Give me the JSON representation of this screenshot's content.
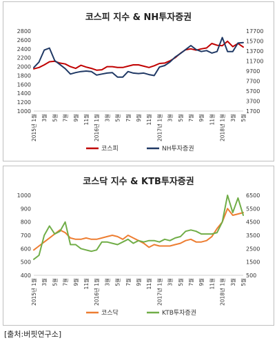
{
  "chart_data": [
    {
      "type": "line",
      "title": "코스피 지수 & NH투자증권",
      "x": [
        "2015-01",
        "2015-02",
        "2015-03",
        "2015-04",
        "2015-05",
        "2015-06",
        "2015-07",
        "2015-08",
        "2015-09",
        "2015-10",
        "2015-11",
        "2015-12",
        "2016-01",
        "2016-02",
        "2016-03",
        "2016-04",
        "2016-05",
        "2016-06",
        "2016-07",
        "2016-08",
        "2016-09",
        "2016-10",
        "2016-11",
        "2016-12",
        "2017-01",
        "2017-02",
        "2017-03",
        "2017-04",
        "2017-05",
        "2017-06",
        "2017-07",
        "2017-08",
        "2017-09",
        "2017-10",
        "2017-11",
        "2017-12",
        "2018-01",
        "2018-02",
        "2018-03",
        "2018-04",
        "2018-05"
      ],
      "x_tick_labels": [
        "2015년 1월",
        "3월",
        "5월",
        "7월",
        "9월",
        "11월",
        "2016년 1월",
        "3월",
        "5월",
        "7월",
        "9월",
        "11월",
        "2017년 1월",
        "3월",
        "5월",
        "7월",
        "9월",
        "11월",
        "2018년 1월",
        "3월",
        "5월"
      ],
      "left_axis": {
        "min": 1000,
        "max": 2800,
        "ticks": [
          "1000",
          "1200",
          "1400",
          "1600",
          "1800",
          "2000",
          "2200",
          "2400",
          "2600",
          "2800"
        ]
      },
      "right_axis": {
        "min": 1700,
        "max": 17700,
        "ticks": [
          "1700",
          "3700",
          "5700",
          "7700",
          "9700",
          "11700",
          "13700",
          "15700",
          "17700"
        ]
      },
      "legend_position": "bottom",
      "series": [
        {
          "name": "코스피",
          "axis": "left",
          "color": "#c00000",
          "values": [
            1950,
            1980,
            2040,
            2110,
            2120,
            2080,
            2060,
            2000,
            1960,
            2030,
            1990,
            1960,
            1920,
            1930,
            2000,
            2000,
            1980,
            1980,
            2010,
            2040,
            2040,
            2010,
            1980,
            2020,
            2070,
            2080,
            2130,
            2200,
            2300,
            2380,
            2400,
            2370,
            2400,
            2420,
            2520,
            2480,
            2470,
            2570,
            2450,
            2520,
            2440
          ]
        },
        {
          "name": "NH투자증권",
          "axis": "right",
          "color": "#1f3864",
          "values": [
            10400,
            11500,
            13900,
            14300,
            11800,
            11000,
            10200,
            9100,
            9400,
            9600,
            9700,
            9600,
            8900,
            9100,
            9300,
            9400,
            8500,
            8500,
            9600,
            9300,
            9200,
            9300,
            9000,
            8800,
            10500,
            10800,
            11500,
            12500,
            13200,
            14000,
            14800,
            14000,
            13600,
            13800,
            13300,
            13600,
            16400,
            13600,
            13600,
            15300,
            15400
          ]
        }
      ]
    },
    {
      "type": "line",
      "title": "코스닥 지수 & KTB투자증권",
      "x": [
        "2015-01",
        "2015-02",
        "2015-03",
        "2015-04",
        "2015-05",
        "2015-06",
        "2015-07",
        "2015-08",
        "2015-09",
        "2015-10",
        "2015-11",
        "2015-12",
        "2016-01",
        "2016-02",
        "2016-03",
        "2016-04",
        "2016-05",
        "2016-06",
        "2016-07",
        "2016-08",
        "2016-09",
        "2016-10",
        "2016-11",
        "2016-12",
        "2017-01",
        "2017-02",
        "2017-03",
        "2017-04",
        "2017-05",
        "2017-06",
        "2017-07",
        "2017-08",
        "2017-09",
        "2017-10",
        "2017-11",
        "2017-12",
        "2018-01",
        "2018-02",
        "2018-03",
        "2018-04",
        "2018-05"
      ],
      "x_tick_labels": [
        "2015년 1월",
        "3월",
        "5월",
        "7월",
        "9월",
        "11월",
        "2016년 1월",
        "3월",
        "5월",
        "7월",
        "9월",
        "11월",
        "2017년 1월",
        "3월",
        "5월",
        "7월",
        "9월",
        "11월",
        "2018년 1월",
        "3월",
        "5월"
      ],
      "left_axis": {
        "min": 400,
        "max": 1000,
        "ticks": [
          "400",
          "500",
          "600",
          "700",
          "800",
          "900",
          "1000"
        ]
      },
      "right_axis": {
        "min": 500,
        "max": 6500,
        "ticks": [
          "500",
          "1500",
          "2500",
          "3500",
          "4500",
          "5500",
          "6500"
        ]
      },
      "legend_position": "bottom",
      "series": [
        {
          "name": "코스닥",
          "axis": "left",
          "color": "#ed7d31",
          "values": [
            590,
            620,
            650,
            680,
            710,
            740,
            720,
            680,
            670,
            670,
            680,
            670,
            670,
            680,
            690,
            700,
            690,
            670,
            700,
            680,
            660,
            640,
            610,
            630,
            620,
            620,
            620,
            630,
            640,
            660,
            670,
            650,
            650,
            660,
            690,
            750,
            800,
            900,
            850,
            860,
            870
          ]
        },
        {
          "name": "KTB투자증권",
          "axis": "right",
          "color": "#70ad47",
          "values": [
            1700,
            2000,
            3500,
            4200,
            3600,
            3800,
            4500,
            2800,
            2800,
            2500,
            2400,
            2300,
            2400,
            3000,
            3000,
            2900,
            2800,
            3000,
            3200,
            2900,
            3100,
            3000,
            3100,
            3100,
            3000,
            3200,
            3100,
            3300,
            3400,
            3800,
            3900,
            3800,
            3600,
            3600,
            3600,
            3700,
            4500,
            6500,
            5200,
            6300,
            5000
          ]
        }
      ]
    }
  ],
  "source": "[출처:버핏연구소]"
}
